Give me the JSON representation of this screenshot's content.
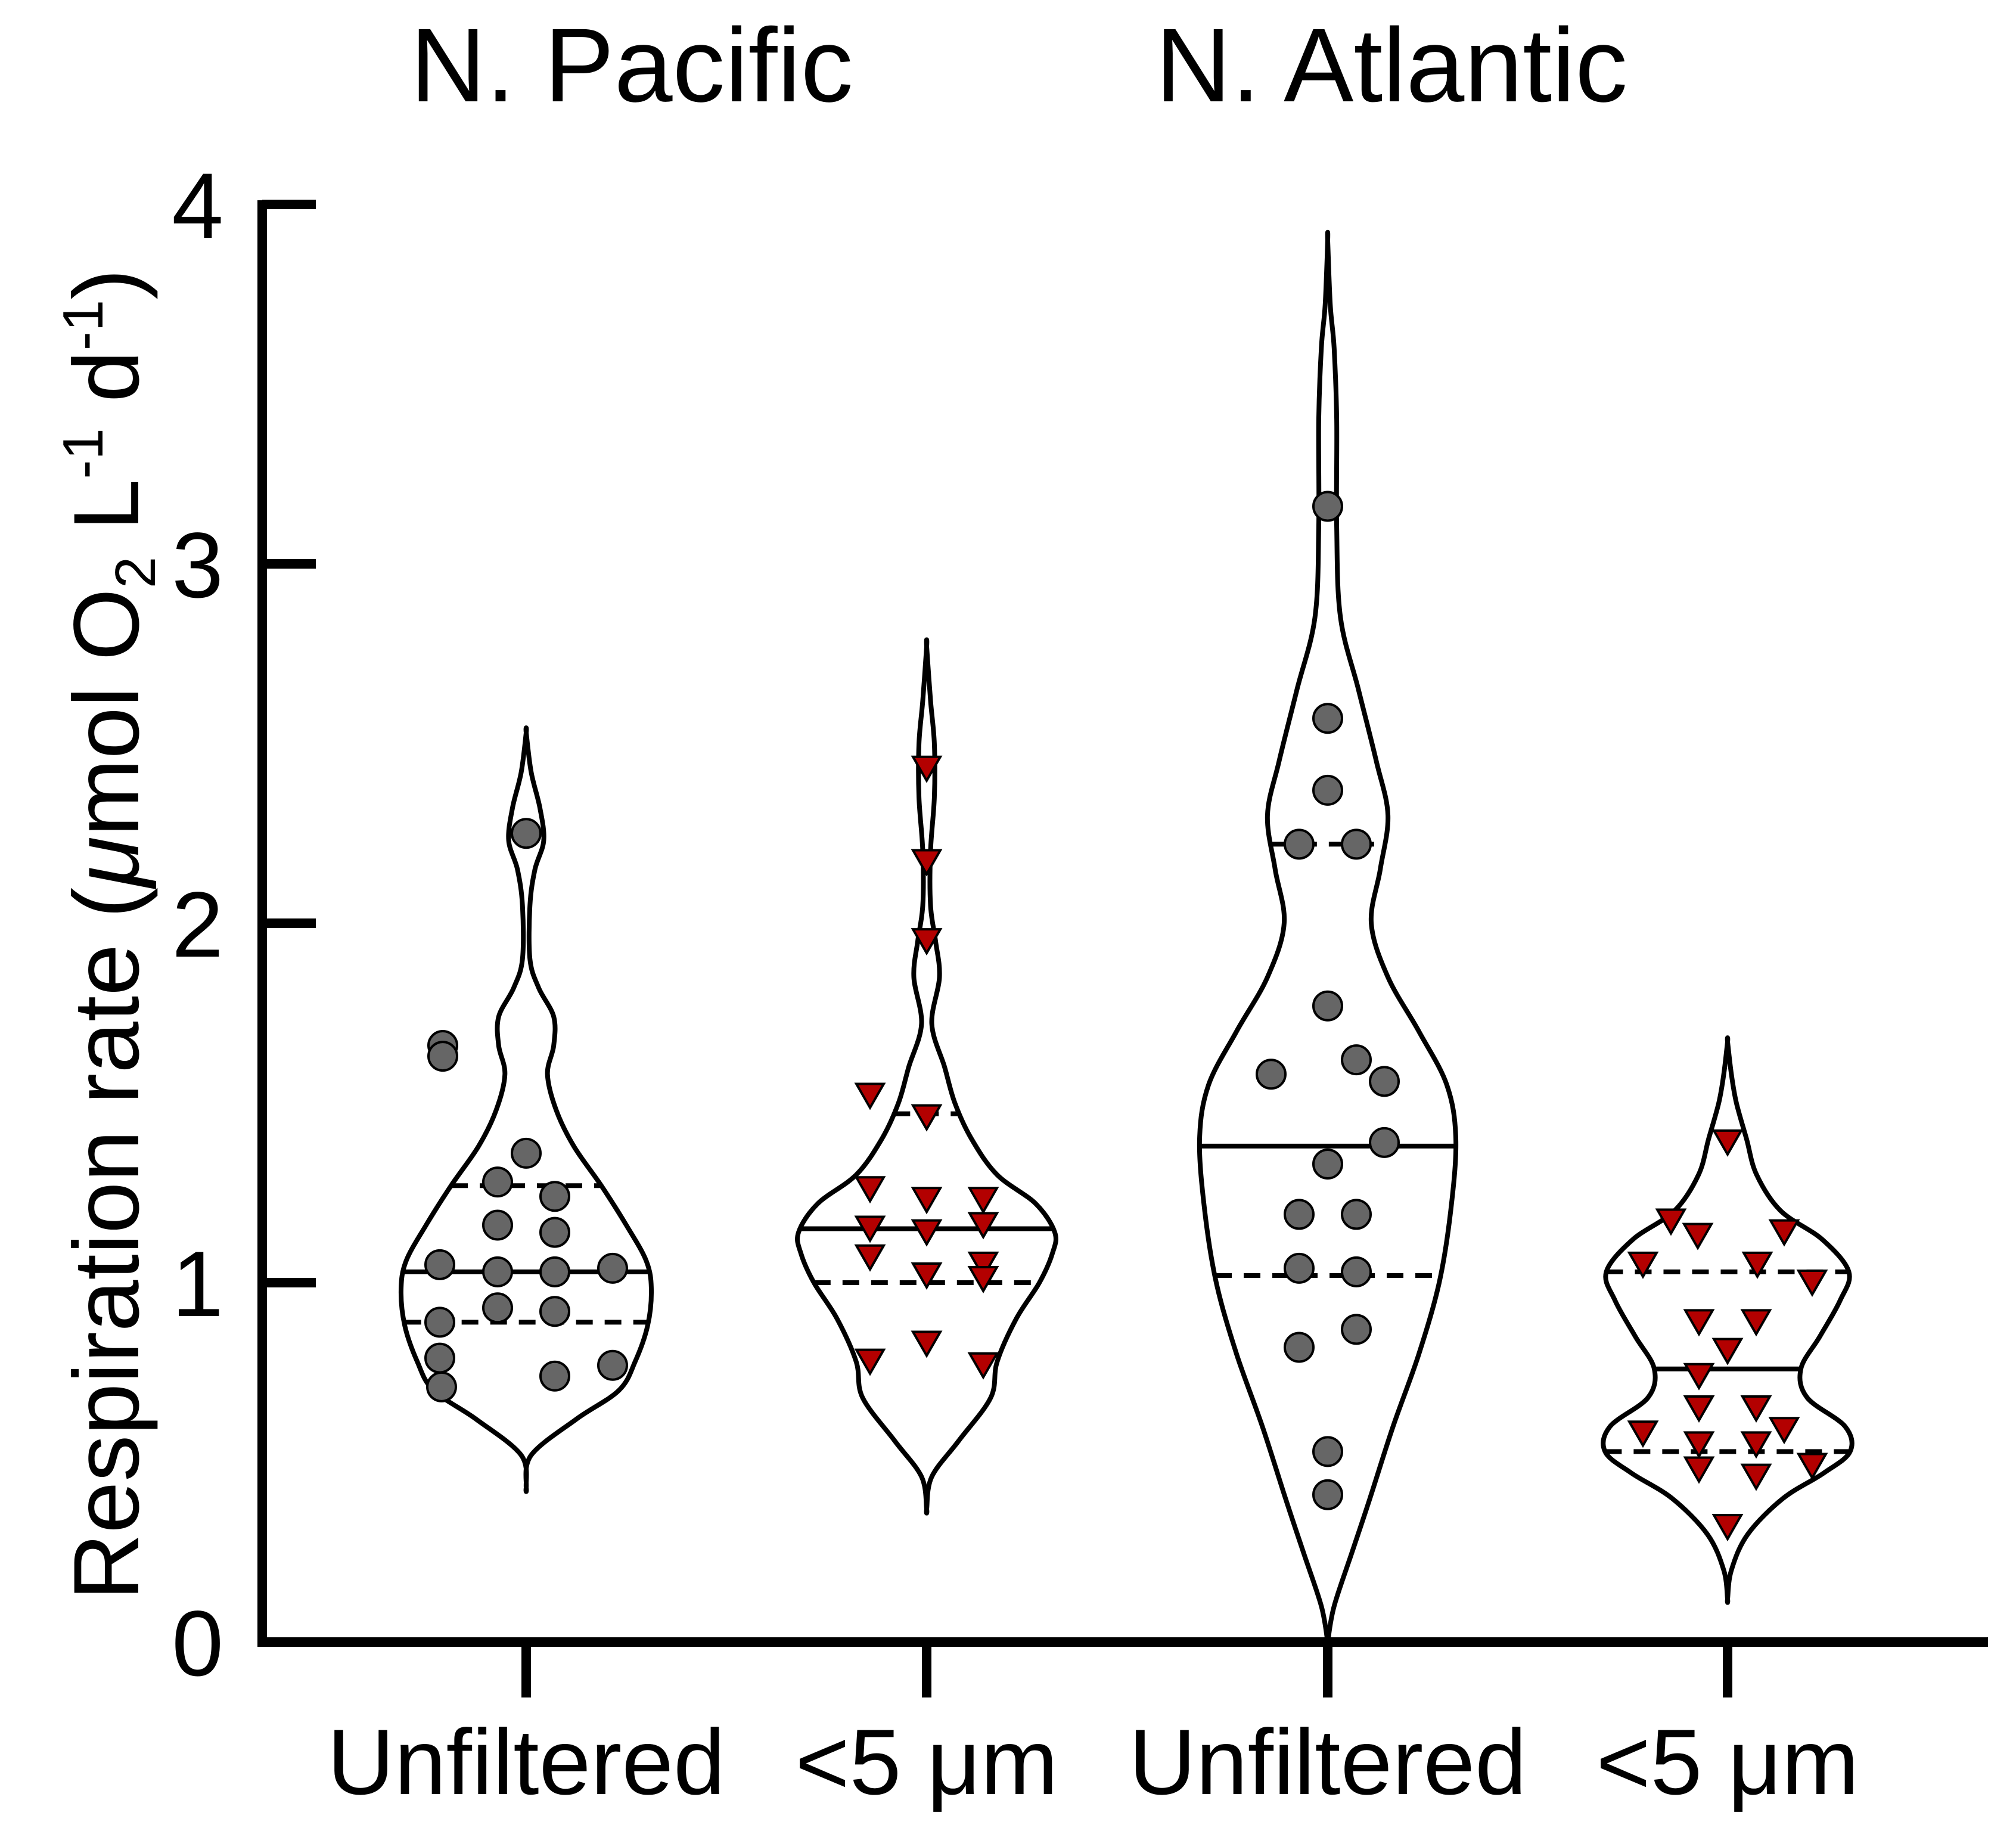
{
  "chart_data": {
    "type": "violin",
    "ylabel": {
      "prefix": "Respiration rate (",
      "mu": "μ",
      "mol": "mol O",
      "sub2": "2",
      "L": " L",
      "supL": "-1",
      "d": " d",
      "supd": "-1",
      "close": ")"
    },
    "ylim": [
      0,
      4
    ],
    "yticks": [
      0,
      1,
      2,
      3,
      4
    ],
    "ytick_labels": [
      "0",
      "1",
      "2",
      "3",
      "4"
    ],
    "group_titles": [
      "N. Pacific",
      "N.  Atlantic"
    ],
    "categories": [
      "Unfiltered",
      "<5 μm",
      "Unfiltered",
      "<5 μm"
    ],
    "grid": false,
    "colors": {
      "circle_fill": "#666666",
      "triangle_fill": "#b30000",
      "line": "#000000"
    },
    "series": [
      {
        "group": "N. Pacific",
        "category": "Unfiltered",
        "marker": "circle",
        "median": 1.03,
        "q1": 0.89,
        "q3": 1.27,
        "points": [
          2.25,
          1.66,
          1.63,
          1.36,
          1.28,
          1.24,
          1.16,
          1.14,
          1.05,
          1.04,
          1.03,
          1.03,
          0.93,
          0.92,
          0.89,
          0.79,
          0.77,
          0.74,
          0.71
        ],
        "violin": [
          [
            0.43,
            0.0
          ],
          [
            0.52,
            0.04
          ],
          [
            0.62,
            0.4
          ],
          [
            0.7,
            0.74
          ],
          [
            0.78,
            0.87
          ],
          [
            0.88,
            0.97
          ],
          [
            0.98,
            1.0
          ],
          [
            1.06,
            0.96
          ],
          [
            1.16,
            0.8
          ],
          [
            1.27,
            0.6
          ],
          [
            1.38,
            0.38
          ],
          [
            1.48,
            0.24
          ],
          [
            1.58,
            0.17
          ],
          [
            1.66,
            0.22
          ],
          [
            1.74,
            0.22
          ],
          [
            1.82,
            0.1
          ],
          [
            1.9,
            0.03
          ],
          [
            2.05,
            0.03
          ],
          [
            2.15,
            0.07
          ],
          [
            2.23,
            0.14
          ],
          [
            2.32,
            0.11
          ],
          [
            2.42,
            0.04
          ],
          [
            2.53,
            0.0
          ]
        ]
      },
      {
        "group": "N. Pacific",
        "category": "<5 μm",
        "marker": "triangle",
        "median": 1.15,
        "q1": 1.0,
        "q3": 1.47,
        "points": [
          2.43,
          2.17,
          1.95,
          1.52,
          1.46,
          1.26,
          1.23,
          1.23,
          1.16,
          1.15,
          1.14,
          1.07,
          1.05,
          1.02,
          1.01,
          0.83,
          0.78,
          0.77
        ],
        "violin": [
          [
            0.37,
            0.0
          ],
          [
            0.46,
            0.04
          ],
          [
            0.56,
            0.25
          ],
          [
            0.68,
            0.5
          ],
          [
            0.78,
            0.55
          ],
          [
            0.9,
            0.7
          ],
          [
            1.0,
            0.88
          ],
          [
            1.08,
            0.98
          ],
          [
            1.14,
            1.0
          ],
          [
            1.22,
            0.85
          ],
          [
            1.3,
            0.55
          ],
          [
            1.4,
            0.35
          ],
          [
            1.5,
            0.22
          ],
          [
            1.6,
            0.14
          ],
          [
            1.72,
            0.04
          ],
          [
            1.85,
            0.1
          ],
          [
            1.95,
            0.07
          ],
          [
            2.05,
            0.03
          ],
          [
            2.2,
            0.03
          ],
          [
            2.35,
            0.06
          ],
          [
            2.5,
            0.06
          ],
          [
            2.62,
            0.03
          ],
          [
            2.77,
            0.0
          ]
        ]
      },
      {
        "group": "N.  Atlantic",
        "category": "Unfiltered",
        "marker": "circle",
        "median": 1.38,
        "q1": 1.02,
        "q3": 2.22,
        "points": [
          3.16,
          2.57,
          2.37,
          2.22,
          2.22,
          1.77,
          1.62,
          1.58,
          1.56,
          1.39,
          1.33,
          1.19,
          1.19,
          1.04,
          1.03,
          0.87,
          0.82,
          0.53,
          0.41
        ],
        "violin": [
          [
            0.0,
            0.0
          ],
          [
            0.1,
            0.05
          ],
          [
            0.25,
            0.19
          ],
          [
            0.4,
            0.33
          ],
          [
            0.6,
            0.51
          ],
          [
            0.8,
            0.71
          ],
          [
            1.0,
            0.87
          ],
          [
            1.2,
            0.96
          ],
          [
            1.4,
            1.0
          ],
          [
            1.55,
            0.93
          ],
          [
            1.7,
            0.71
          ],
          [
            1.85,
            0.47
          ],
          [
            2.0,
            0.34
          ],
          [
            2.15,
            0.41
          ],
          [
            2.3,
            0.47
          ],
          [
            2.45,
            0.38
          ],
          [
            2.65,
            0.24
          ],
          [
            2.85,
            0.1
          ],
          [
            3.1,
            0.07
          ],
          [
            3.4,
            0.07
          ],
          [
            3.6,
            0.05
          ],
          [
            3.72,
            0.02
          ],
          [
            3.9,
            0.0
          ]
        ]
      },
      {
        "group": "N.  Atlantic",
        "category": "<5 μm",
        "marker": "triangle",
        "median": 0.76,
        "q1": 0.53,
        "q3": 1.03,
        "points": [
          1.39,
          1.17,
          1.14,
          1.13,
          1.05,
          1.05,
          1.0,
          0.89,
          0.89,
          0.81,
          0.74,
          0.65,
          0.65,
          0.59,
          0.58,
          0.55,
          0.55,
          0.49,
          0.48,
          0.46,
          0.32
        ],
        "violin": [
          [
            0.12,
            0.0
          ],
          [
            0.2,
            0.03
          ],
          [
            0.3,
            0.16
          ],
          [
            0.4,
            0.44
          ],
          [
            0.47,
            0.76
          ],
          [
            0.53,
            0.97
          ],
          [
            0.6,
            0.93
          ],
          [
            0.68,
            0.63
          ],
          [
            0.76,
            0.58
          ],
          [
            0.85,
            0.73
          ],
          [
            0.95,
            0.89
          ],
          [
            1.03,
            0.96
          ],
          [
            1.12,
            0.75
          ],
          [
            1.2,
            0.42
          ],
          [
            1.3,
            0.23
          ],
          [
            1.4,
            0.15
          ],
          [
            1.5,
            0.07
          ],
          [
            1.58,
            0.03
          ],
          [
            1.67,
            0.0
          ]
        ]
      }
    ]
  }
}
